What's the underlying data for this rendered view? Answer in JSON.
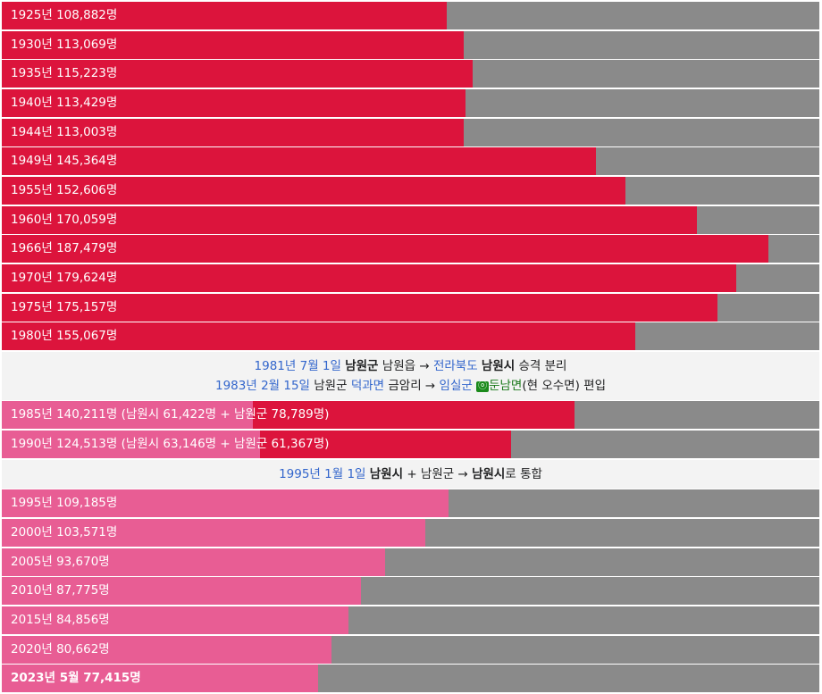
{
  "colors": {
    "grey": "#8a8a8a",
    "red": "#dc143c",
    "pink": "#e85d94",
    "note_bg": "#f3f3f3",
    "link": "#3366cc"
  },
  "chart_data": {
    "type": "bar",
    "orientation": "horizontal",
    "max_value": 200000,
    "rows": [
      {
        "kind": "bar",
        "label": "1925년 108,882명",
        "total": 108882,
        "style": "red"
      },
      {
        "kind": "bar",
        "label": "1930년 113,069명",
        "total": 113069,
        "style": "red"
      },
      {
        "kind": "bar",
        "label": "1935년 115,223명",
        "total": 115223,
        "style": "red"
      },
      {
        "kind": "bar",
        "label": "1940년 113,429명",
        "total": 113429,
        "style": "red"
      },
      {
        "kind": "bar",
        "label": "1944년 113,003명",
        "total": 113003,
        "style": "red"
      },
      {
        "kind": "bar",
        "label": "1949년 145,364명",
        "total": 145364,
        "style": "red"
      },
      {
        "kind": "bar",
        "label": "1955년 152,606명",
        "total": 152606,
        "style": "red"
      },
      {
        "kind": "bar",
        "label": "1960년 170,059명",
        "total": 170059,
        "style": "red"
      },
      {
        "kind": "bar",
        "label": "1966년 187,479명",
        "total": 187479,
        "style": "red"
      },
      {
        "kind": "bar",
        "label": "1970년 179,624명",
        "total": 179624,
        "style": "red"
      },
      {
        "kind": "bar",
        "label": "1975년 175,157명",
        "total": 175157,
        "style": "red"
      },
      {
        "kind": "bar",
        "label": "1980년 155,067명",
        "total": 155067,
        "style": "red"
      },
      {
        "kind": "note",
        "lines": [
          [
            {
              "t": "1981년 7월 1일",
              "s": "link"
            },
            {
              "t": " "
            },
            {
              "t": "남원군",
              "s": "bold"
            },
            {
              "t": " 남원읍 → "
            },
            {
              "t": "전라북도",
              "s": "link"
            },
            {
              "t": " "
            },
            {
              "t": "남원시",
              "s": "bold"
            },
            {
              "t": " 승격 분리"
            }
          ],
          [
            {
              "t": "1983년 2월 15일",
              "s": "link"
            },
            {
              "t": " 남원군 "
            },
            {
              "t": "덕과면",
              "s": "link"
            },
            {
              "t": " 금암리 → "
            },
            {
              "t": "임실군",
              "s": "link"
            },
            {
              "t": " "
            },
            {
              "t": "ⓞ",
              "s": "sym"
            },
            {
              "t": "둔남면",
              "s": "green"
            },
            {
              "t": "(현 오수면) 편입"
            }
          ]
        ]
      },
      {
        "kind": "bar",
        "label": "1985년 140,211명 (남원시 61,422명 + 남원군 78,789명)",
        "total": 140211,
        "parts": [
          61422,
          78789
        ]
      },
      {
        "kind": "bar",
        "label": "1990년 124,513명 (남원시 63,146명 + 남원군 61,367명)",
        "total": 124513,
        "parts": [
          63146,
          61367
        ]
      },
      {
        "kind": "note",
        "lines": [
          [
            {
              "t": "1995년 1월 1일",
              "s": "link"
            },
            {
              "t": " "
            },
            {
              "t": "남원시",
              "s": "bold"
            },
            {
              "t": " + 남원군 → "
            },
            {
              "t": "남원시",
              "s": "bold"
            },
            {
              "t": "로 통합"
            }
          ]
        ]
      },
      {
        "kind": "bar",
        "label": "1995년 109,185명",
        "total": 109185,
        "style": "pink"
      },
      {
        "kind": "bar",
        "label": "2000년 103,571명",
        "total": 103571,
        "style": "pink"
      },
      {
        "kind": "bar",
        "label": "2005년 93,670명",
        "total": 93670,
        "style": "pink"
      },
      {
        "kind": "bar",
        "label": "2010년 87,775명",
        "total": 87775,
        "style": "pink"
      },
      {
        "kind": "bar",
        "label": "2015년 84,856명",
        "total": 84856,
        "style": "pink"
      },
      {
        "kind": "bar",
        "label": "2020년 80,662명",
        "total": 80662,
        "style": "pink"
      },
      {
        "kind": "bar",
        "label": "2023년 5월 77,415명",
        "total": 77415,
        "style": "pink",
        "bold": true
      }
    ]
  }
}
